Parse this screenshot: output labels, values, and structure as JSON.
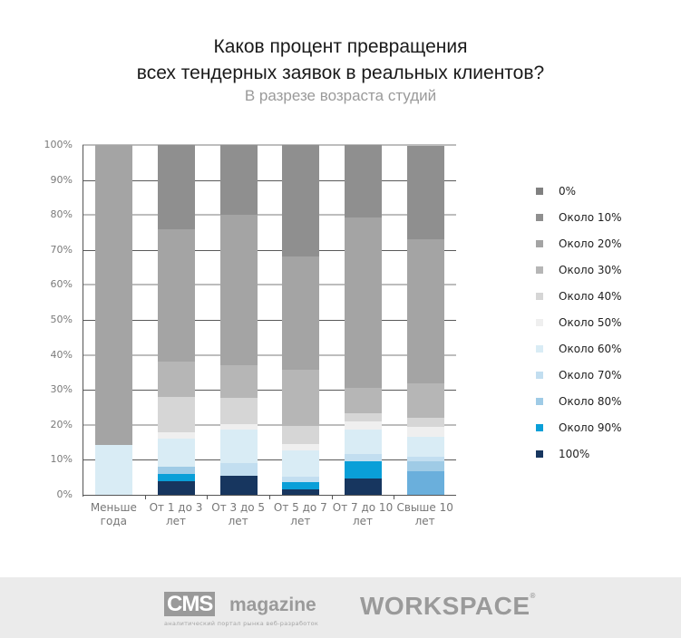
{
  "header": {
    "title_line1": "Каков процент превращения",
    "title_line2": "всех тендерных заявок в реальных клиентов?",
    "subtitle": "В разрезе возраста студий"
  },
  "chart_data": {
    "type": "bar",
    "stacked": true,
    "orientation": "vertical",
    "title": "Каков процент превращения всех тендерных заявок в реальных клиентов?",
    "subtitle": "В разрезе возраста студий",
    "xlabel": "",
    "ylabel": "",
    "ylim": [
      0,
      100
    ],
    "yticks": [
      "0%",
      "10%",
      "20%",
      "30%",
      "40%",
      "50%",
      "60%",
      "70%",
      "80%",
      "90%",
      "100%"
    ],
    "grid": true,
    "legend_position": "right",
    "categories": [
      "Меньше года",
      "От 1 до 3 лет",
      "От 3 до 5 лет",
      "От 5 до 7 лет",
      "От 7 до 10 лет",
      "Свыше 10 лет"
    ],
    "category_lines": [
      [
        "Меньше",
        "года"
      ],
      [
        "От 1 до 3",
        "лет"
      ],
      [
        "От 3 до 5",
        "лет"
      ],
      [
        "От 5 до 7",
        "лет"
      ],
      [
        "От 7 до 10",
        "лет"
      ],
      [
        "Свыше 10",
        "лет"
      ]
    ],
    "series": [
      {
        "name": "100%",
        "color": "#17365f",
        "values": [
          0,
          3.8,
          5.4,
          1.6,
          4.7,
          0
        ]
      },
      {
        "name": "Около 90%",
        "color": "#0a9fd8",
        "values": [
          0,
          2.1,
          0,
          2.1,
          4.9,
          0
        ]
      },
      {
        "name": "Около 80%",
        "color": "#9fcbe6",
        "values": [
          0,
          2.1,
          0,
          0,
          0,
          9.6
        ]
      },
      {
        "name": "Около 70%",
        "color": "#c2def0",
        "values": [
          0,
          0,
          3.6,
          1.6,
          2.1,
          1.3
        ]
      },
      {
        "name": "Около 60%",
        "color": "#d9ecf5",
        "values": [
          14.3,
          8.0,
          9.6,
          7.5,
          7.0,
          5.7
        ]
      },
      {
        "name": "Около 50%",
        "color": "#efefef",
        "values": [
          0,
          2.0,
          1.6,
          1.6,
          2.3,
          2.8
        ]
      },
      {
        "name": "Около 40%",
        "color": "#d6d6d6",
        "values": [
          0,
          10.0,
          7.5,
          5.4,
          2.3,
          2.6
        ]
      },
      {
        "name": "Около 30%",
        "color": "#b6b6b6",
        "values": [
          0,
          10.0,
          9.3,
          16.1,
          7.3,
          9.8
        ]
      },
      {
        "name": "Около 20%",
        "color": "#a4a4a4",
        "values": [
          85.7,
          38.0,
          43.0,
          32.2,
          48.7,
          41.2
        ]
      },
      {
        "name": "Около 10%",
        "color": "#8f8f8f",
        "values": [
          0,
          24.0,
          20.0,
          32.0,
          20.7,
          26.8
        ]
      },
      {
        "name": "0%",
        "color": "#808080",
        "values": [
          0,
          0,
          0,
          0,
          0,
          0
        ]
      }
    ],
    "segment_color_overrides": [
      {
        "category": "Свыше 10 лет",
        "series": "Около 80%",
        "bottom_portion": 6.7,
        "color": "#6aafdc"
      }
    ]
  },
  "legend": [
    {
      "label": "0%",
      "color": "#808080"
    },
    {
      "label": "Около 10%",
      "color": "#8f8f8f"
    },
    {
      "label": "Около 20%",
      "color": "#a4a4a4"
    },
    {
      "label": "Около 30%",
      "color": "#b6b6b6"
    },
    {
      "label": "Около 40%",
      "color": "#d6d6d6"
    },
    {
      "label": "Около 50%",
      "color": "#efefef"
    },
    {
      "label": "Около 60%",
      "color": "#d9ecf5"
    },
    {
      "label": "Около 70%",
      "color": "#c2def0"
    },
    {
      "label": "Около 80%",
      "color": "#9fcbe6"
    },
    {
      "label": "Около 90%",
      "color": "#0a9fd8"
    },
    {
      "label": "100%",
      "color": "#17365f"
    }
  ],
  "footer": {
    "cms_logo": "CMS",
    "cms_logo_suffix": "magazine",
    "cms_tagline": "аналитический портал рынка веб-разработок",
    "workspace_logo": "WORKSPACE",
    "workspace_reg": "®"
  }
}
